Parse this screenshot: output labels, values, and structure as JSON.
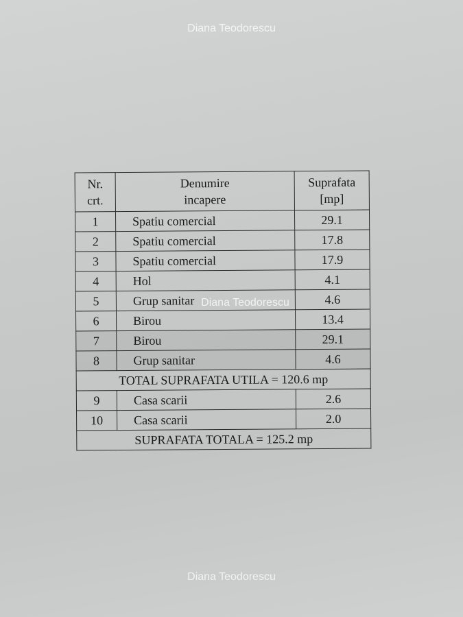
{
  "watermark": "Diana Teodorescu",
  "table": {
    "headers": [
      "Nr.\ncrt.",
      "Denumire\nincapere",
      "Suprafata\n[mp]"
    ],
    "rows": [
      {
        "nr": "1",
        "name": "Spatiu comercial",
        "area": "29.1"
      },
      {
        "nr": "2",
        "name": "Spatiu comercial",
        "area": "17.8"
      },
      {
        "nr": "3",
        "name": "Spatiu comercial",
        "area": "17.9"
      },
      {
        "nr": "4",
        "name": "Hol",
        "area": "4.1"
      },
      {
        "nr": "5",
        "name": "Grup sanitar",
        "area": "4.6"
      },
      {
        "nr": "6",
        "name": "Birou",
        "area": "13.4"
      },
      {
        "nr": "7",
        "name": "Birou",
        "area": "29.1"
      },
      {
        "nr": "8",
        "name": "Grup sanitar",
        "area": "4.6"
      }
    ],
    "subtotal": "TOTAL SUPRAFATA UTILA = 120.6 mp",
    "rows2": [
      {
        "nr": "9",
        "name": "Casa scarii",
        "area": "2.6"
      },
      {
        "nr": "10",
        "name": "Casa scarii",
        "area": "2.0"
      }
    ],
    "total": "SUPRAFATA TOTALA = 125.2 mp"
  }
}
